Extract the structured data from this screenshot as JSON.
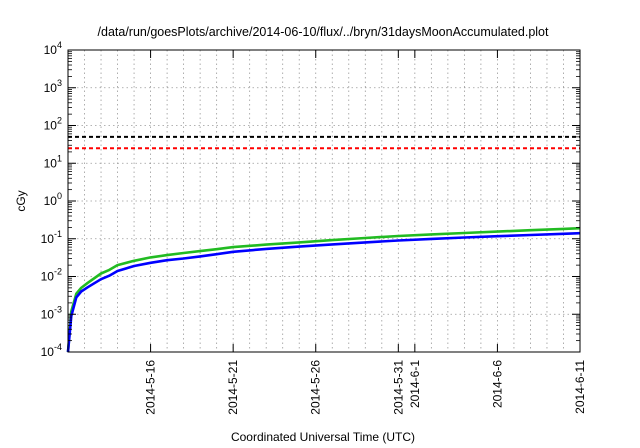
{
  "chart_data": {
    "type": "line",
    "title": "/data/run/goesPlots/archive/2014-06-10/flux/../bryn/31daysMoonAccumulated.plot",
    "xlabel": "Coordinated Universal Time (UTC)",
    "ylabel": "cGy",
    "yscale": "log",
    "ylim": [
      0.0001,
      10000
    ],
    "xlim": [
      0,
      31
    ],
    "grid": true,
    "y_ticks": [
      {
        "value": 0.0001,
        "base": "10",
        "exp": "-4"
      },
      {
        "value": 0.001,
        "base": "10",
        "exp": "-3"
      },
      {
        "value": 0.01,
        "base": "10",
        "exp": "-2"
      },
      {
        "value": 0.1,
        "base": "10",
        "exp": "-1"
      },
      {
        "value": 1,
        "base": "10",
        "exp": "0"
      },
      {
        "value": 10,
        "base": "10",
        "exp": "1"
      },
      {
        "value": 100,
        "base": "10",
        "exp": "2"
      },
      {
        "value": 1000,
        "base": "10",
        "exp": "3"
      },
      {
        "value": 10000,
        "base": "10",
        "exp": "4"
      }
    ],
    "x_ticks": [
      {
        "x": 5,
        "label": "2014-5-16"
      },
      {
        "x": 10,
        "label": "2014-5-21"
      },
      {
        "x": 15,
        "label": "2014-5-26"
      },
      {
        "x": 20,
        "label": "2014-5-31"
      },
      {
        "x": 21,
        "label": "2014-6-1"
      },
      {
        "x": 26,
        "label": "2014-6-6"
      },
      {
        "x": 31,
        "label": "2014-6-11"
      }
    ],
    "reference_lines": [
      {
        "value": 50,
        "color": "#000000"
      },
      {
        "value": 25,
        "color": "#ff0000"
      }
    ],
    "series": [
      {
        "color": "#22bb22",
        "x": [
          0,
          0.2,
          0.5,
          0.8,
          1.2,
          2,
          2.5,
          3,
          4,
          5,
          6,
          7,
          8,
          9,
          10,
          12,
          14,
          16,
          18,
          20,
          22,
          24,
          26,
          28,
          30,
          31
        ],
        "y": [
          0.0001,
          0.0012,
          0.0035,
          0.005,
          0.0068,
          0.012,
          0.015,
          0.02,
          0.026,
          0.032,
          0.037,
          0.042,
          0.047,
          0.053,
          0.06,
          0.07,
          0.08,
          0.092,
          0.105,
          0.118,
          0.13,
          0.142,
          0.155,
          0.168,
          0.182,
          0.19
        ]
      },
      {
        "color": "#0000ff",
        "x": [
          0,
          0.2,
          0.5,
          0.8,
          1.2,
          2,
          2.5,
          3,
          4,
          5,
          6,
          7,
          8,
          9,
          10,
          12,
          14,
          16,
          18,
          20,
          22,
          24,
          26,
          28,
          30,
          31
        ],
        "y": [
          0.0001,
          0.0009,
          0.0028,
          0.004,
          0.0052,
          0.0085,
          0.0105,
          0.014,
          0.019,
          0.023,
          0.027,
          0.03,
          0.034,
          0.039,
          0.045,
          0.054,
          0.062,
          0.071,
          0.08,
          0.09,
          0.099,
          0.108,
          0.117,
          0.126,
          0.135,
          0.14
        ]
      }
    ]
  }
}
